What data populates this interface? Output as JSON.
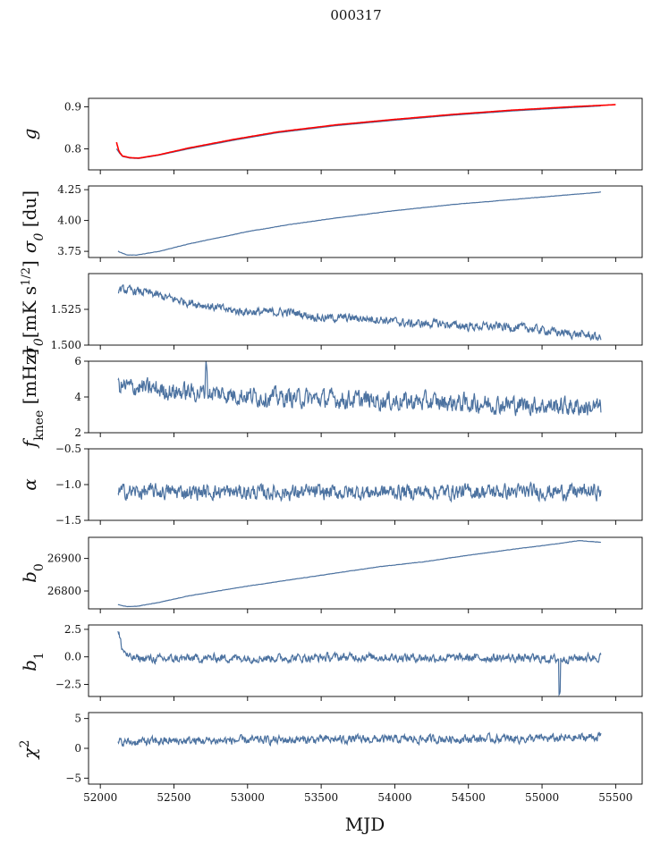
{
  "figure": {
    "title": "000317",
    "xlabel": "MJD",
    "xlim": [
      51920,
      55680
    ],
    "xticks": [
      52000,
      52500,
      53000,
      53500,
      54000,
      54500,
      55000,
      55500
    ],
    "series_color": "#4c72a0",
    "overlay_color": "#ff0000"
  },
  "chart_data": [
    {
      "type": "line",
      "ylabel": "g",
      "ylim": [
        0.75,
        0.92
      ],
      "yticks": [
        0.8,
        0.9
      ],
      "yticklabels": [
        "0.8",
        "0.9"
      ],
      "series": [
        {
          "x": [
            52110,
            52130,
            52150,
            52200,
            52260,
            52400,
            52600,
            52900,
            53200,
            53600,
            54000,
            54400,
            54800,
            55200,
            55400
          ],
          "y": [
            0.8,
            0.79,
            0.782,
            0.778,
            0.777,
            0.785,
            0.8,
            0.82,
            0.838,
            0.855,
            0.868,
            0.88,
            0.89,
            0.898,
            0.902
          ]
        },
        {
          "x": [
            52110,
            52125,
            52150,
            52200,
            52260,
            52400,
            52600,
            52900,
            53200,
            53600,
            54000,
            54400,
            54800,
            55200,
            55500
          ],
          "y": [
            0.815,
            0.795,
            0.783,
            0.779,
            0.778,
            0.786,
            0.802,
            0.822,
            0.84,
            0.857,
            0.87,
            0.882,
            0.892,
            0.9,
            0.905
          ]
        }
      ]
    },
    {
      "type": "line",
      "ylabel": "σ0 [du]",
      "ylim": [
        3.7,
        4.28
      ],
      "yticks": [
        3.75,
        4.0,
        4.25
      ],
      "yticklabels": [
        "3.75",
        "4.00",
        "4.25"
      ],
      "series": [
        {
          "x": [
            52120,
            52180,
            52250,
            52400,
            52600,
            52800,
            53000,
            53300,
            53600,
            54000,
            54400,
            54800,
            55100,
            55400
          ],
          "y": [
            3.75,
            3.72,
            3.72,
            3.75,
            3.81,
            3.86,
            3.91,
            3.97,
            4.02,
            4.08,
            4.13,
            4.17,
            4.2,
            4.23
          ]
        }
      ]
    },
    {
      "type": "line",
      "ylabel": "σ0[mK s1/2]",
      "ylim": [
        1.5,
        1.55
      ],
      "yticks": [
        1.5,
        1.525
      ],
      "yticklabels": [
        "1.500",
        "1.525"
      ],
      "series": [
        {
          "x": [
            52120,
            52300,
            52500,
            52700,
            52900,
            53100,
            53300,
            53500,
            53700,
            53900,
            54100,
            54300,
            54500,
            54700,
            54900,
            55100,
            55300,
            55400
          ],
          "y": [
            1.539,
            1.537,
            1.532,
            1.528,
            1.524,
            1.523,
            1.523,
            1.519,
            1.519,
            1.518,
            1.515,
            1.515,
            1.513,
            1.513,
            1.512,
            1.509,
            1.507,
            1.505
          ]
        }
      ]
    },
    {
      "type": "line",
      "ylabel": "fknee [mHz]",
      "ylim": [
        2,
        6
      ],
      "yticks": [
        2,
        4,
        6
      ],
      "yticklabels": [
        "2",
        "4",
        "6"
      ],
      "series": [
        {
          "x": [
            52120,
            52300,
            52500,
            52800,
            53100,
            53500,
            53900,
            54300,
            54700,
            55100,
            55400
          ],
          "y": [
            4.6,
            4.5,
            4.3,
            4.2,
            4.0,
            3.9,
            3.8,
            3.7,
            3.6,
            3.5,
            3.4
          ]
        }
      ]
    },
    {
      "type": "line",
      "ylabel": "α",
      "ylim": [
        -1.5,
        -0.5
      ],
      "yticks": [
        -1.5,
        -1.0,
        -0.5
      ],
      "yticklabels": [
        "−1.5",
        "−1.0",
        "−0.5"
      ],
      "series": [
        {
          "x": [
            52120,
            52600,
            53100,
            53600,
            54100,
            54600,
            55100,
            55400
          ],
          "y": [
            -1.1,
            -1.1,
            -1.11,
            -1.11,
            -1.1,
            -1.1,
            -1.1,
            -1.1
          ]
        }
      ]
    },
    {
      "type": "line",
      "ylabel": "b0",
      "ylim": [
        26745,
        26965
      ],
      "yticks": [
        26800,
        26900
      ],
      "yticklabels": [
        "26800",
        "26900"
      ],
      "series": [
        {
          "x": [
            52120,
            52180,
            52250,
            52400,
            52600,
            52800,
            53000,
            53300,
            53600,
            53900,
            54200,
            54500,
            54800,
            55100,
            55250,
            55400
          ],
          "y": [
            26758,
            26752,
            26753,
            26765,
            26785,
            26800,
            26815,
            26835,
            26855,
            26875,
            26890,
            26910,
            26928,
            26945,
            26955,
            26950
          ]
        }
      ]
    },
    {
      "type": "line",
      "ylabel": "b1",
      "ylim": [
        -3.6,
        2.9
      ],
      "yticks": [
        -2.5,
        0.0,
        2.5
      ],
      "yticklabels": [
        "−2.5",
        "0.0",
        "2.5"
      ],
      "series": [
        {
          "x": [
            52120,
            52150,
            52200,
            52400,
            52800,
            53300,
            53800,
            54300,
            54800,
            55100,
            55400
          ],
          "y": [
            2.3,
            0.7,
            -0.1,
            -0.2,
            -0.1,
            -0.1,
            0.0,
            -0.1,
            -0.1,
            -0.2,
            0.0
          ]
        }
      ]
    },
    {
      "type": "line",
      "ylabel": "χ2",
      "ylim": [
        -6,
        6
      ],
      "yticks": [
        -5,
        0,
        5
      ],
      "yticklabels": [
        "−5",
        "0",
        "5"
      ],
      "series": [
        {
          "x": [
            52120,
            52400,
            52800,
            53200,
            53600,
            54000,
            54400,
            54800,
            55200,
            55400
          ],
          "y": [
            1.0,
            1.2,
            1.3,
            1.4,
            1.5,
            1.5,
            1.6,
            1.6,
            1.7,
            2.0
          ]
        }
      ]
    }
  ]
}
